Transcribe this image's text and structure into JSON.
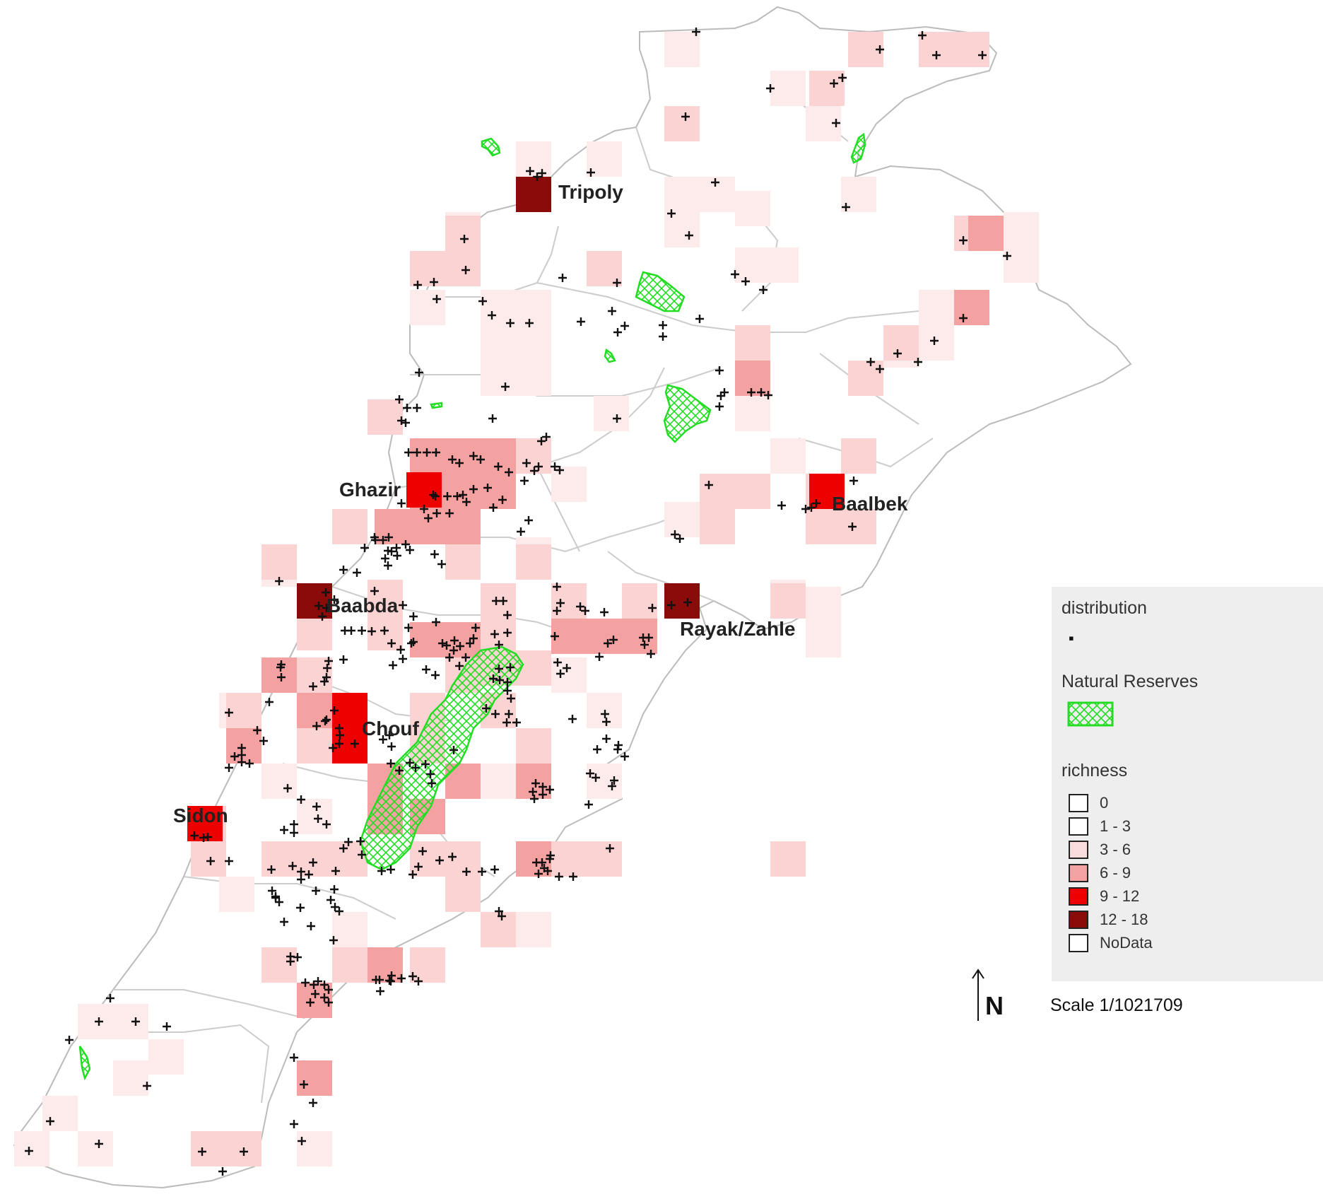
{
  "map": {
    "cities": [
      {
        "name": "Tripoly"
      },
      {
        "name": "Ghazir"
      },
      {
        "name": "Baalbek"
      },
      {
        "name": "Baabda"
      },
      {
        "name": "Rayak/Zahle"
      },
      {
        "name": "Chouf"
      },
      {
        "name": "Sidon"
      }
    ],
    "colors": {
      "class_0": "#ffffff",
      "class_1_3": "#fdeaea",
      "class_3_6": "#fbd3d3",
      "class_6_9": "#f3a1a1",
      "class_9_12": "#ee0000",
      "class_12_18": "#8b0a0a",
      "reserve": "#22dd22",
      "boundary": "#bbbbbb"
    }
  },
  "legend": {
    "distribution_title": "distribution",
    "reserves_title": "Natural Reserves",
    "richness_title": "richness",
    "classes": [
      {
        "label": "0",
        "color": "#ffffff"
      },
      {
        "label": "1 - 3",
        "color": "#ffffff"
      },
      {
        "label": "3 - 6",
        "color": "#fbdcdc"
      },
      {
        "label": "6 - 9",
        "color": "#f3a1a1"
      },
      {
        "label": "9 - 12",
        "color": "#ee0000"
      },
      {
        "label": "12 - 18",
        "color": "#8b0a0a"
      },
      {
        "label": "NoData",
        "color": "#ffffff"
      }
    ]
  },
  "north_label": "N",
  "scale_text": "Scale 1/1021709"
}
